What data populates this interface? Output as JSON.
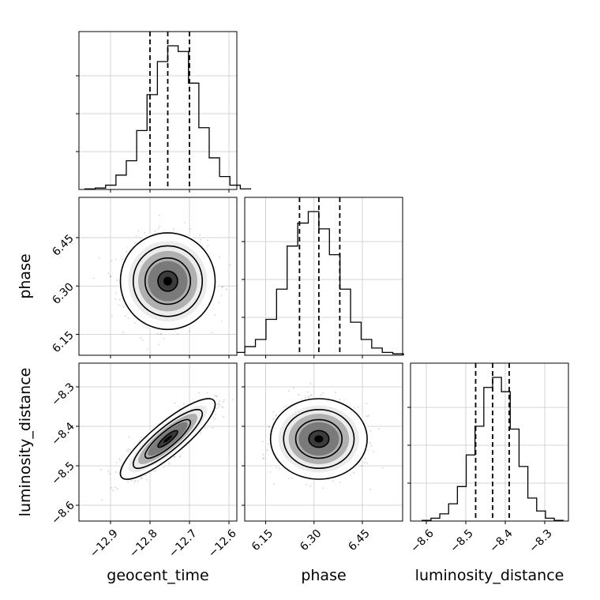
{
  "chart_data": {
    "type": "corner",
    "parameters": [
      "geocent_time",
      "phase",
      "luminosity_distance"
    ],
    "axis_labels": {
      "x": [
        "geocent_time",
        "phase",
        "luminosity_distance"
      ],
      "y": [
        "phase",
        "luminosity_distance"
      ]
    },
    "ranges": {
      "geocent_time": [
        -12.98,
        -12.58
      ],
      "phase": [
        6.085,
        6.575
      ],
      "luminosity_distance": [
        -8.64,
        -8.24
      ]
    },
    "ticks": {
      "geocent_time": [
        -12.9,
        -12.8,
        -12.7,
        -12.6
      ],
      "phase": [
        6.15,
        6.3,
        6.45
      ],
      "luminosity_distance": [
        -8.6,
        -8.5,
        -8.4,
        -8.3
      ]
    },
    "tick_labels": {
      "geocent_time": [
        "−12.9",
        "−12.8",
        "−12.7",
        "−12.6"
      ],
      "phase": [
        "6.15",
        "6.30",
        "6.45"
      ],
      "luminosity_distance": [
        "−8.6",
        "−8.5",
        "−8.4",
        "−8.3"
      ]
    },
    "quantiles": {
      "geocent_time": [
        -12.8,
        -12.755,
        -12.7
      ],
      "phase": [
        6.255,
        6.315,
        6.38
      ],
      "luminosity_distance": [
        -8.475,
        -8.432,
        -8.39
      ]
    },
    "histograms": {
      "geocent_time": [
        0.004,
        0.01,
        0.03,
        0.1,
        0.2,
        0.41,
        0.66,
        0.89,
        1.0,
        0.96,
        0.74,
        0.43,
        0.22,
        0.09,
        0.03,
        0.004
      ],
      "phase": [
        0.02,
        0.06,
        0.11,
        0.25,
        0.46,
        0.76,
        0.92,
        1.0,
        0.88,
        0.7,
        0.46,
        0.23,
        0.11,
        0.05,
        0.02,
        0.01
      ],
      "luminosity_distance": [
        0.005,
        0.02,
        0.05,
        0.12,
        0.24,
        0.46,
        0.66,
        0.93,
        1.0,
        0.9,
        0.64,
        0.38,
        0.16,
        0.07,
        0.02,
        0.005
      ]
    },
    "correlations": {
      "phase_vs_geocent_time": 0.0,
      "luminosity_distance_vs_geocent_time": 0.86,
      "luminosity_distance_vs_phase": 0.0
    },
    "grid": true,
    "contours": true,
    "scatter_points": true
  }
}
